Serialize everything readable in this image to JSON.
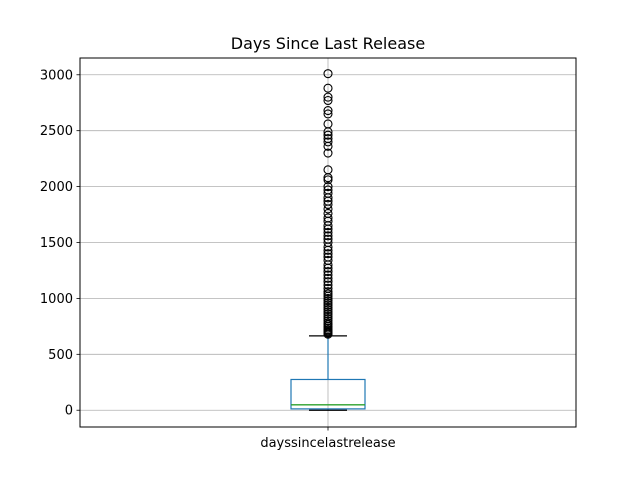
{
  "chart_data": {
    "type": "box",
    "title": "Days Since Last Release",
    "categories": [
      "dayssincelastrelease"
    ],
    "ylim": [
      -150,
      3150
    ],
    "yticks": [
      0,
      500,
      1000,
      1500,
      2000,
      2500,
      3000
    ],
    "grid": true,
    "box": {
      "whisker_low": 0,
      "q1": 12,
      "median": 48,
      "q3": 275,
      "whisker_high": 665,
      "outliers": [
        680,
        690,
        700,
        710,
        720,
        735,
        750,
        765,
        780,
        800,
        820,
        840,
        860,
        880,
        900,
        920,
        940,
        960,
        980,
        1000,
        1020,
        1040,
        1060,
        1090,
        1120,
        1150,
        1180,
        1210,
        1240,
        1270,
        1300,
        1340,
        1370,
        1400,
        1430,
        1460,
        1500,
        1530,
        1560,
        1590,
        1620,
        1650,
        1690,
        1720,
        1760,
        1800,
        1840,
        1870,
        1900,
        1940,
        1970,
        2000,
        2060,
        2080,
        2150,
        2300,
        2360,
        2400,
        2430,
        2460,
        2490,
        2560,
        2650,
        2680,
        2770,
        2800,
        2880,
        3010
      ]
    },
    "colors": {
      "box": "#1f77b4",
      "median": "#2ca02c",
      "outlier": "#000000",
      "grid": "#b0b0b0"
    }
  }
}
